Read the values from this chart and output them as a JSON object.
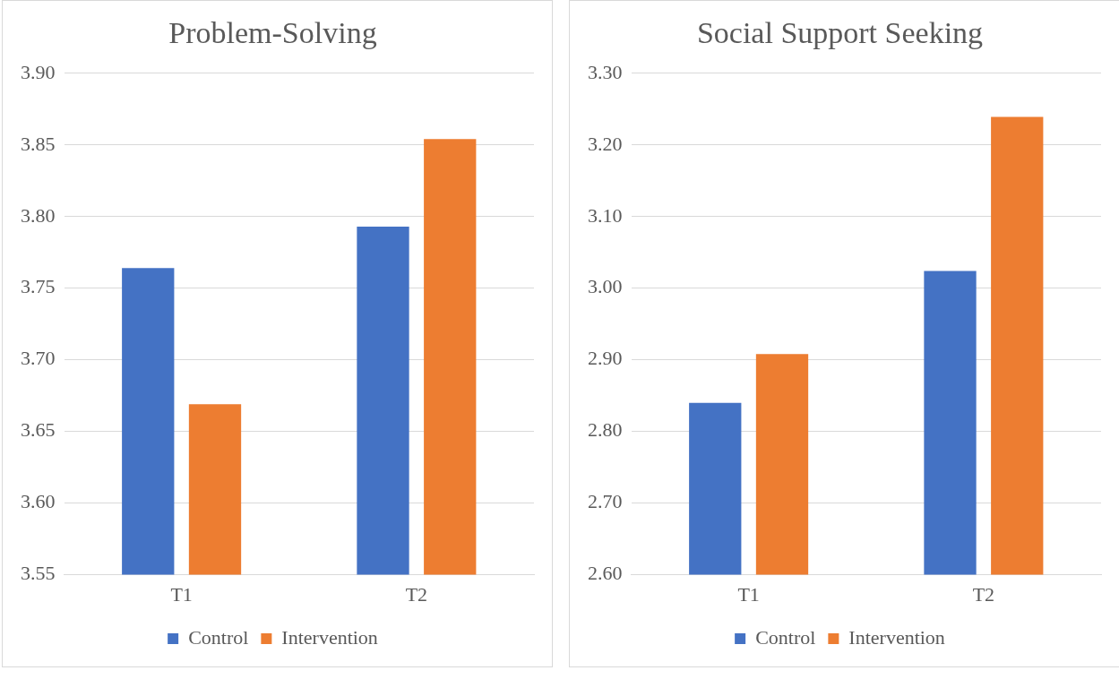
{
  "chart_data": [
    {
      "type": "bar",
      "title": "Problem-Solving",
      "categories": [
        "T1",
        "T2"
      ],
      "series": [
        {
          "name": "Control",
          "color": "#4472c4",
          "values": [
            3.764,
            3.793
          ]
        },
        {
          "name": "Intervention",
          "color": "#ed7d31",
          "values": [
            3.669,
            3.854
          ]
        }
      ],
      "ylim": [
        3.55,
        3.9
      ],
      "yticks": [
        {
          "value": 3.55,
          "label": "3.55"
        },
        {
          "value": 3.6,
          "label": "3.60"
        },
        {
          "value": 3.65,
          "label": "3.65"
        },
        {
          "value": 3.7,
          "label": "3.70"
        },
        {
          "value": 3.75,
          "label": "3.75"
        },
        {
          "value": 3.8,
          "label": "3.80"
        },
        {
          "value": 3.85,
          "label": "3.85"
        },
        {
          "value": 3.9,
          "label": "3.90"
        }
      ],
      "grid": "y",
      "legend": "bottom"
    },
    {
      "type": "bar",
      "title": "Social Support Seeking",
      "categories": [
        "T1",
        "T2"
      ],
      "series": [
        {
          "name": "Control",
          "color": "#4472c4",
          "values": [
            2.84,
            3.024
          ]
        },
        {
          "name": "Intervention",
          "color": "#ed7d31",
          "values": [
            2.908,
            3.239
          ]
        }
      ],
      "ylim": [
        2.6,
        3.3
      ],
      "yticks": [
        {
          "value": 2.6,
          "label": "2.60"
        },
        {
          "value": 2.7,
          "label": "2.70"
        },
        {
          "value": 2.8,
          "label": "2.80"
        },
        {
          "value": 2.9,
          "label": "2.90"
        },
        {
          "value": 3.0,
          "label": "3.00"
        },
        {
          "value": 3.1,
          "label": "3.10"
        },
        {
          "value": 3.2,
          "label": "3.20"
        },
        {
          "value": 3.3,
          "label": "3.30"
        }
      ],
      "grid": "y",
      "legend": "bottom"
    }
  ]
}
